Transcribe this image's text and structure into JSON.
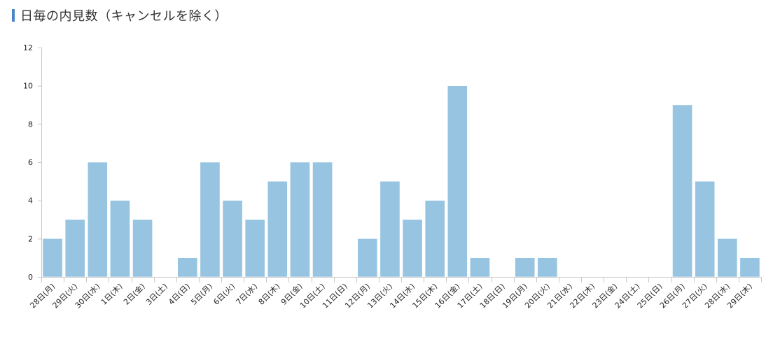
{
  "title": "日毎の内見数（キャンセルを除く）",
  "colors": {
    "bar": "#97c4e0",
    "bar_edge": "#ffffff",
    "axis": "#c8c8c8",
    "title_accent": "#4a86c5"
  },
  "chart_data": {
    "type": "bar",
    "title": "日毎の内見数（キャンセルを除く）",
    "xlabel": "",
    "ylabel": "",
    "ylim": [
      0,
      12
    ],
    "yticks": [
      0,
      2,
      4,
      6,
      8,
      10,
      12
    ],
    "grid": false,
    "legend": "none",
    "categories": [
      "28日(月)",
      "29日(火)",
      "30日(水)",
      "1日(木)",
      "2日(金)",
      "3日(土)",
      "4日(日)",
      "5日(月)",
      "6日(火)",
      "7日(水)",
      "8日(木)",
      "9日(金)",
      "10日(土)",
      "11日(日)",
      "12日(月)",
      "13日(火)",
      "14日(水)",
      "15日(木)",
      "16日(金)",
      "17日(土)",
      "18日(日)",
      "19日(月)",
      "20日(火)",
      "21日(水)",
      "22日(木)",
      "23日(金)",
      "24日(土)",
      "25日(日)",
      "26日(月)",
      "27日(火)",
      "28日(水)",
      "29日(木)"
    ],
    "values": [
      2,
      3,
      6,
      4,
      3,
      0,
      1,
      6,
      4,
      3,
      5,
      6,
      6,
      0,
      2,
      5,
      3,
      4,
      10,
      1,
      0,
      1,
      1,
      0,
      0,
      0,
      0,
      0,
      9,
      5,
      2,
      1
    ]
  }
}
